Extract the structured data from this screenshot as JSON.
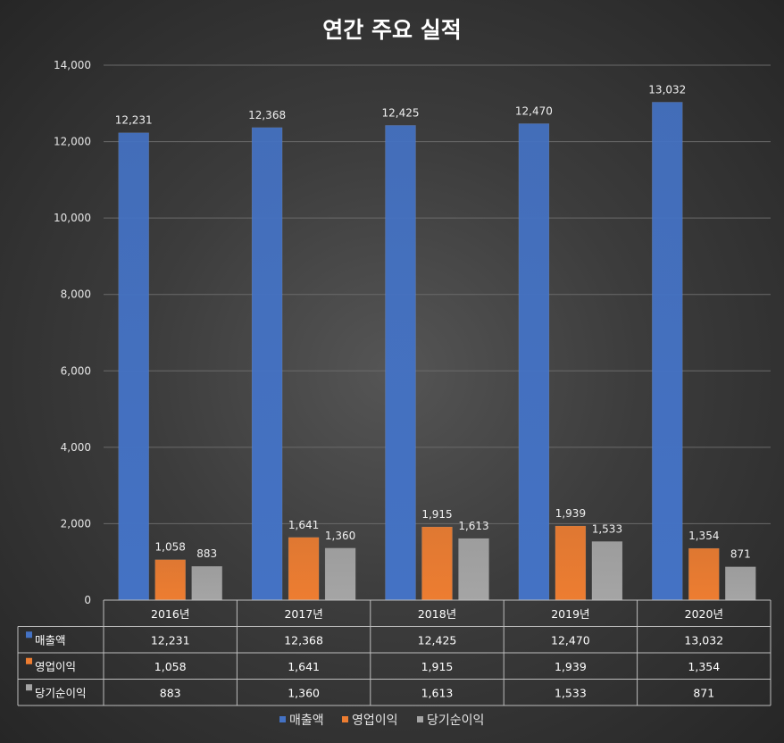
{
  "chart_data": {
    "type": "bar",
    "title": "연간 주요 실적",
    "categories": [
      "2016년",
      "2017년",
      "2018년",
      "2019년",
      "2020년"
    ],
    "series": [
      {
        "name": "매출액",
        "color": "#4472c4",
        "values": [
          12231,
          12368,
          12425,
          12470,
          13032
        ],
        "labels": [
          "12,231",
          "12,368",
          "12,425",
          "12,470",
          "13,032"
        ]
      },
      {
        "name": "영업이익",
        "color": "#ed7d31",
        "values": [
          1058,
          1641,
          1915,
          1939,
          1354
        ],
        "labels": [
          "1,058",
          "1,641",
          "1,915",
          "1,939",
          "1,354"
        ]
      },
      {
        "name": "당기순이익",
        "color": "#a5a5a5",
        "values": [
          883,
          1360,
          1613,
          1533,
          871
        ],
        "labels": [
          "883",
          "1,360",
          "1,613",
          "1,533",
          "871"
        ]
      }
    ],
    "ylim": [
      0,
      14000
    ],
    "yticks": [
      0,
      2000,
      4000,
      6000,
      8000,
      10000,
      12000,
      14000
    ],
    "ytick_labels": [
      "0",
      "2,000",
      "4,000",
      "6,000",
      "8,000",
      "10,000",
      "12,000",
      "14,000"
    ],
    "grid": true,
    "data_table": true,
    "legend_position": "bottom"
  }
}
